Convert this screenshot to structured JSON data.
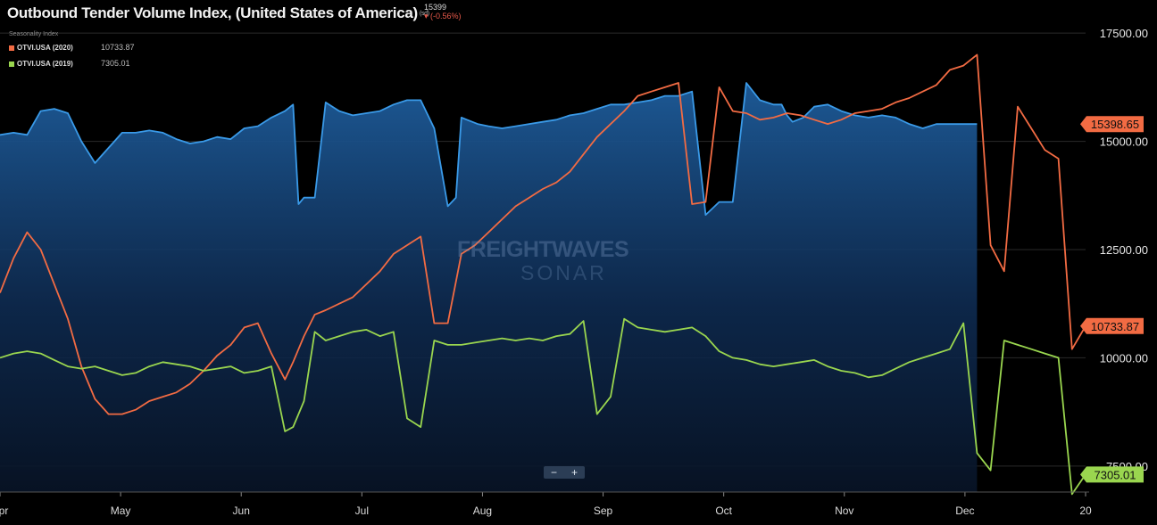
{
  "header": {
    "title": "Outbound Tender Volume Index, (United States of America)",
    "title_suffix": "(sd)",
    "quote_value": "15399",
    "quote_change": "▾ (-0.56%)",
    "seasonality_label": "Seasonality Index"
  },
  "legend": [
    {
      "name": "OTVI.USA (2020)",
      "value": "10733.87",
      "color": "#f26b43"
    },
    {
      "name": "OTVI.USA (2019)",
      "value": "7305.01",
      "color": "#9ad64f"
    }
  ],
  "watermark": {
    "line1": "FREIGHTWAVES",
    "line2": "SONAR"
  },
  "zoom": {
    "minus": "−",
    "plus": "+"
  },
  "colors": {
    "background": "#000000",
    "main": "#3a9ae8",
    "orange": "#f26b43",
    "green": "#9ad64f",
    "grid": "#2a2a2a"
  },
  "chart_data": {
    "type": "line",
    "x_ticks": [
      "Apr",
      "May",
      "Jun",
      "Jul",
      "Aug",
      "Sep",
      "Oct",
      "Nov",
      "Dec",
      "20"
    ],
    "y_ticks": [
      "17500.00",
      "15000.00",
      "12500.00",
      "10000.00",
      "7500.00"
    ],
    "ylim": [
      6900,
      18100
    ],
    "xlim": [
      0,
      20
    ],
    "grid": true,
    "last_value_labels": [
      {
        "text": "15398.65",
        "series": "OTVI.USA",
        "y": 15399,
        "color": "#f26b43"
      },
      {
        "text": "10733.87",
        "series": "OTVI.USA (2020)",
        "y": 10734,
        "color": "#f26b43"
      },
      {
        "text": "7305.01",
        "series": "OTVI.USA (2019)",
        "y": 7305,
        "color": "#9ad64f"
      }
    ],
    "series": [
      {
        "name": "OTVI.USA",
        "style": "area",
        "color": "#3a9ae8",
        "x": [
          0,
          0.25,
          0.5,
          0.75,
          1,
          1.25,
          1.5,
          1.75,
          2,
          2.25,
          2.5,
          2.75,
          3,
          3.25,
          3.5,
          3.75,
          4,
          4.25,
          4.5,
          4.75,
          5,
          5.25,
          5.4,
          5.5,
          5.6,
          5.8,
          6,
          6.25,
          6.5,
          6.75,
          7,
          7.25,
          7.5,
          7.75,
          8,
          8.25,
          8.4,
          8.5,
          8.6,
          8.8,
          9,
          9.25,
          9.5,
          9.75,
          10,
          10.25,
          10.5,
          10.75,
          11,
          11.25,
          11.5,
          11.75,
          12,
          12.25,
          12.5,
          12.75,
          13,
          13.25,
          13.5,
          13.75,
          14,
          14.25,
          14.4,
          14.5,
          14.6,
          14.8,
          15,
          15.25,
          15.5,
          15.75,
          16,
          16.25,
          16.5,
          16.75,
          17,
          17.25,
          17.5,
          17.75,
          18
        ],
        "values": [
          15150,
          15200,
          15150,
          15700,
          15750,
          15650,
          15000,
          14500,
          14850,
          15200,
          15200,
          15250,
          15200,
          15050,
          14950,
          15000,
          15100,
          15050,
          15300,
          15350,
          15550,
          15700,
          15850,
          13550,
          13700,
          13700,
          15900,
          15700,
          15600,
          15650,
          15700,
          15850,
          15950,
          15950,
          15300,
          13500,
          13700,
          15550,
          15500,
          15400,
          15350,
          15300,
          15350,
          15400,
          15450,
          15500,
          15600,
          15650,
          15750,
          15850,
          15850,
          15900,
          15950,
          16050,
          16050,
          16150,
          13300,
          13600,
          13600,
          16350,
          15950,
          15850,
          15850,
          15600,
          15450,
          15550,
          15800,
          15850,
          15700,
          15600,
          15550,
          15600,
          15550,
          15400,
          15300,
          15399,
          15399,
          15399,
          15399
        ]
      },
      {
        "name": "OTVI.USA (2020)",
        "color": "#f26b43",
        "x": [
          0,
          0.25,
          0.5,
          0.75,
          1,
          1.25,
          1.5,
          1.75,
          2,
          2.25,
          2.5,
          2.75,
          3,
          3.25,
          3.5,
          3.75,
          4,
          4.25,
          4.5,
          4.75,
          5,
          5.25,
          5.4,
          5.6,
          5.8,
          6,
          6.25,
          6.5,
          6.75,
          7,
          7.25,
          7.5,
          7.75,
          8,
          8.25,
          8.5,
          8.75,
          9,
          9.25,
          9.5,
          9.75,
          10,
          10.25,
          10.5,
          10.75,
          11,
          11.25,
          11.5,
          11.75,
          12,
          12.25,
          12.5,
          12.75,
          13,
          13.25,
          13.5,
          13.75,
          14,
          14.25,
          14.5,
          14.75,
          15,
          15.25,
          15.5,
          15.75,
          16,
          16.25,
          16.5,
          16.75,
          17,
          17.25,
          17.5,
          17.75,
          18,
          18.25,
          18.5,
          18.75,
          19,
          19.25,
          19.5,
          19.75,
          20
        ],
        "values": [
          11500,
          12300,
          12900,
          12500,
          11700,
          10900,
          9800,
          9050,
          8700,
          8700,
          8800,
          9000,
          9100,
          9200,
          9400,
          9700,
          10050,
          10300,
          10700,
          10800,
          10100,
          9500,
          9900,
          10500,
          11000,
          11100,
          11250,
          11400,
          11700,
          12000,
          12400,
          12600,
          12800,
          10800,
          10800,
          12400,
          12600,
          12900,
          13200,
          13500,
          13700,
          13900,
          14050,
          14300,
          14700,
          15100,
          15400,
          15700,
          16050,
          16150,
          16250,
          16350,
          13550,
          13600,
          16250,
          15700,
          15650,
          15500,
          15550,
          15650,
          15600,
          15500,
          15400,
          15500,
          15650,
          15700,
          15750,
          15900,
          16000,
          16150,
          16300,
          16650,
          16750,
          17000,
          12600,
          12000,
          15800,
          15300,
          14800,
          14600,
          10200,
          10734
        ]
      },
      {
        "name": "OTVI.USA (2019)",
        "color": "#9ad64f",
        "x": [
          0,
          0.25,
          0.5,
          0.75,
          1,
          1.25,
          1.5,
          1.75,
          2,
          2.25,
          2.5,
          2.75,
          3,
          3.25,
          3.5,
          3.75,
          4,
          4.25,
          4.5,
          4.75,
          5,
          5.25,
          5.4,
          5.6,
          5.8,
          6,
          6.25,
          6.5,
          6.75,
          7,
          7.25,
          7.5,
          7.75,
          8,
          8.25,
          8.5,
          8.75,
          9,
          9.25,
          9.5,
          9.75,
          10,
          10.25,
          10.5,
          10.75,
          11,
          11.25,
          11.5,
          11.75,
          12,
          12.25,
          12.5,
          12.75,
          13,
          13.25,
          13.5,
          13.75,
          14,
          14.25,
          14.5,
          14.75,
          15,
          15.25,
          15.5,
          15.75,
          16,
          16.25,
          16.5,
          16.75,
          17,
          17.25,
          17.5,
          17.75,
          18,
          18.25,
          18.5,
          18.75,
          19,
          19.25,
          19.5,
          19.75,
          20
        ],
        "values": [
          10000,
          10100,
          10150,
          10100,
          9950,
          9800,
          9750,
          9800,
          9700,
          9600,
          9650,
          9800,
          9900,
          9850,
          9800,
          9700,
          9750,
          9800,
          9650,
          9700,
          9800,
          8300,
          8400,
          9000,
          10600,
          10400,
          10500,
          10600,
          10650,
          10500,
          10600,
          8600,
          8400,
          10400,
          10300,
          10300,
          10350,
          10400,
          10450,
          10400,
          10450,
          10400,
          10500,
          10550,
          10850,
          8700,
          9100,
          10900,
          10700,
          10650,
          10600,
          10650,
          10700,
          10500,
          10150,
          10000,
          9950,
          9850,
          9800,
          9850,
          9900,
          9950,
          9800,
          9700,
          9650,
          9550,
          9600,
          9750,
          9900,
          10000,
          10100,
          10200,
          10800,
          7800,
          7400,
          10400,
          10300,
          10200,
          10100,
          10000,
          6850,
          7305
        ]
      }
    ]
  }
}
